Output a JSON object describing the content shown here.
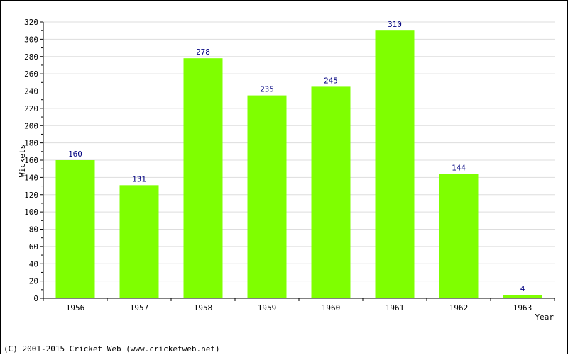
{
  "chart_data": {
    "type": "bar",
    "title": "",
    "xlabel": "Year",
    "ylabel": "Wickets",
    "categories": [
      "1956",
      "1957",
      "1958",
      "1959",
      "1960",
      "1961",
      "1962",
      "1963"
    ],
    "values": [
      160,
      131,
      278,
      235,
      245,
      310,
      144,
      4
    ],
    "ylim": [
      0,
      320
    ],
    "y_ticks": [
      0,
      20,
      40,
      60,
      80,
      100,
      120,
      140,
      160,
      180,
      200,
      220,
      240,
      260,
      280,
      300,
      320
    ],
    "grid": true,
    "data_labels": true,
    "colors": {
      "bar": "#7fff00",
      "value_label": "#000080",
      "grid": "#dddddd",
      "axis": "#000000"
    }
  },
  "footer": {
    "copyright": "(C) 2001-2015 Cricket Web (www.cricketweb.net)"
  }
}
